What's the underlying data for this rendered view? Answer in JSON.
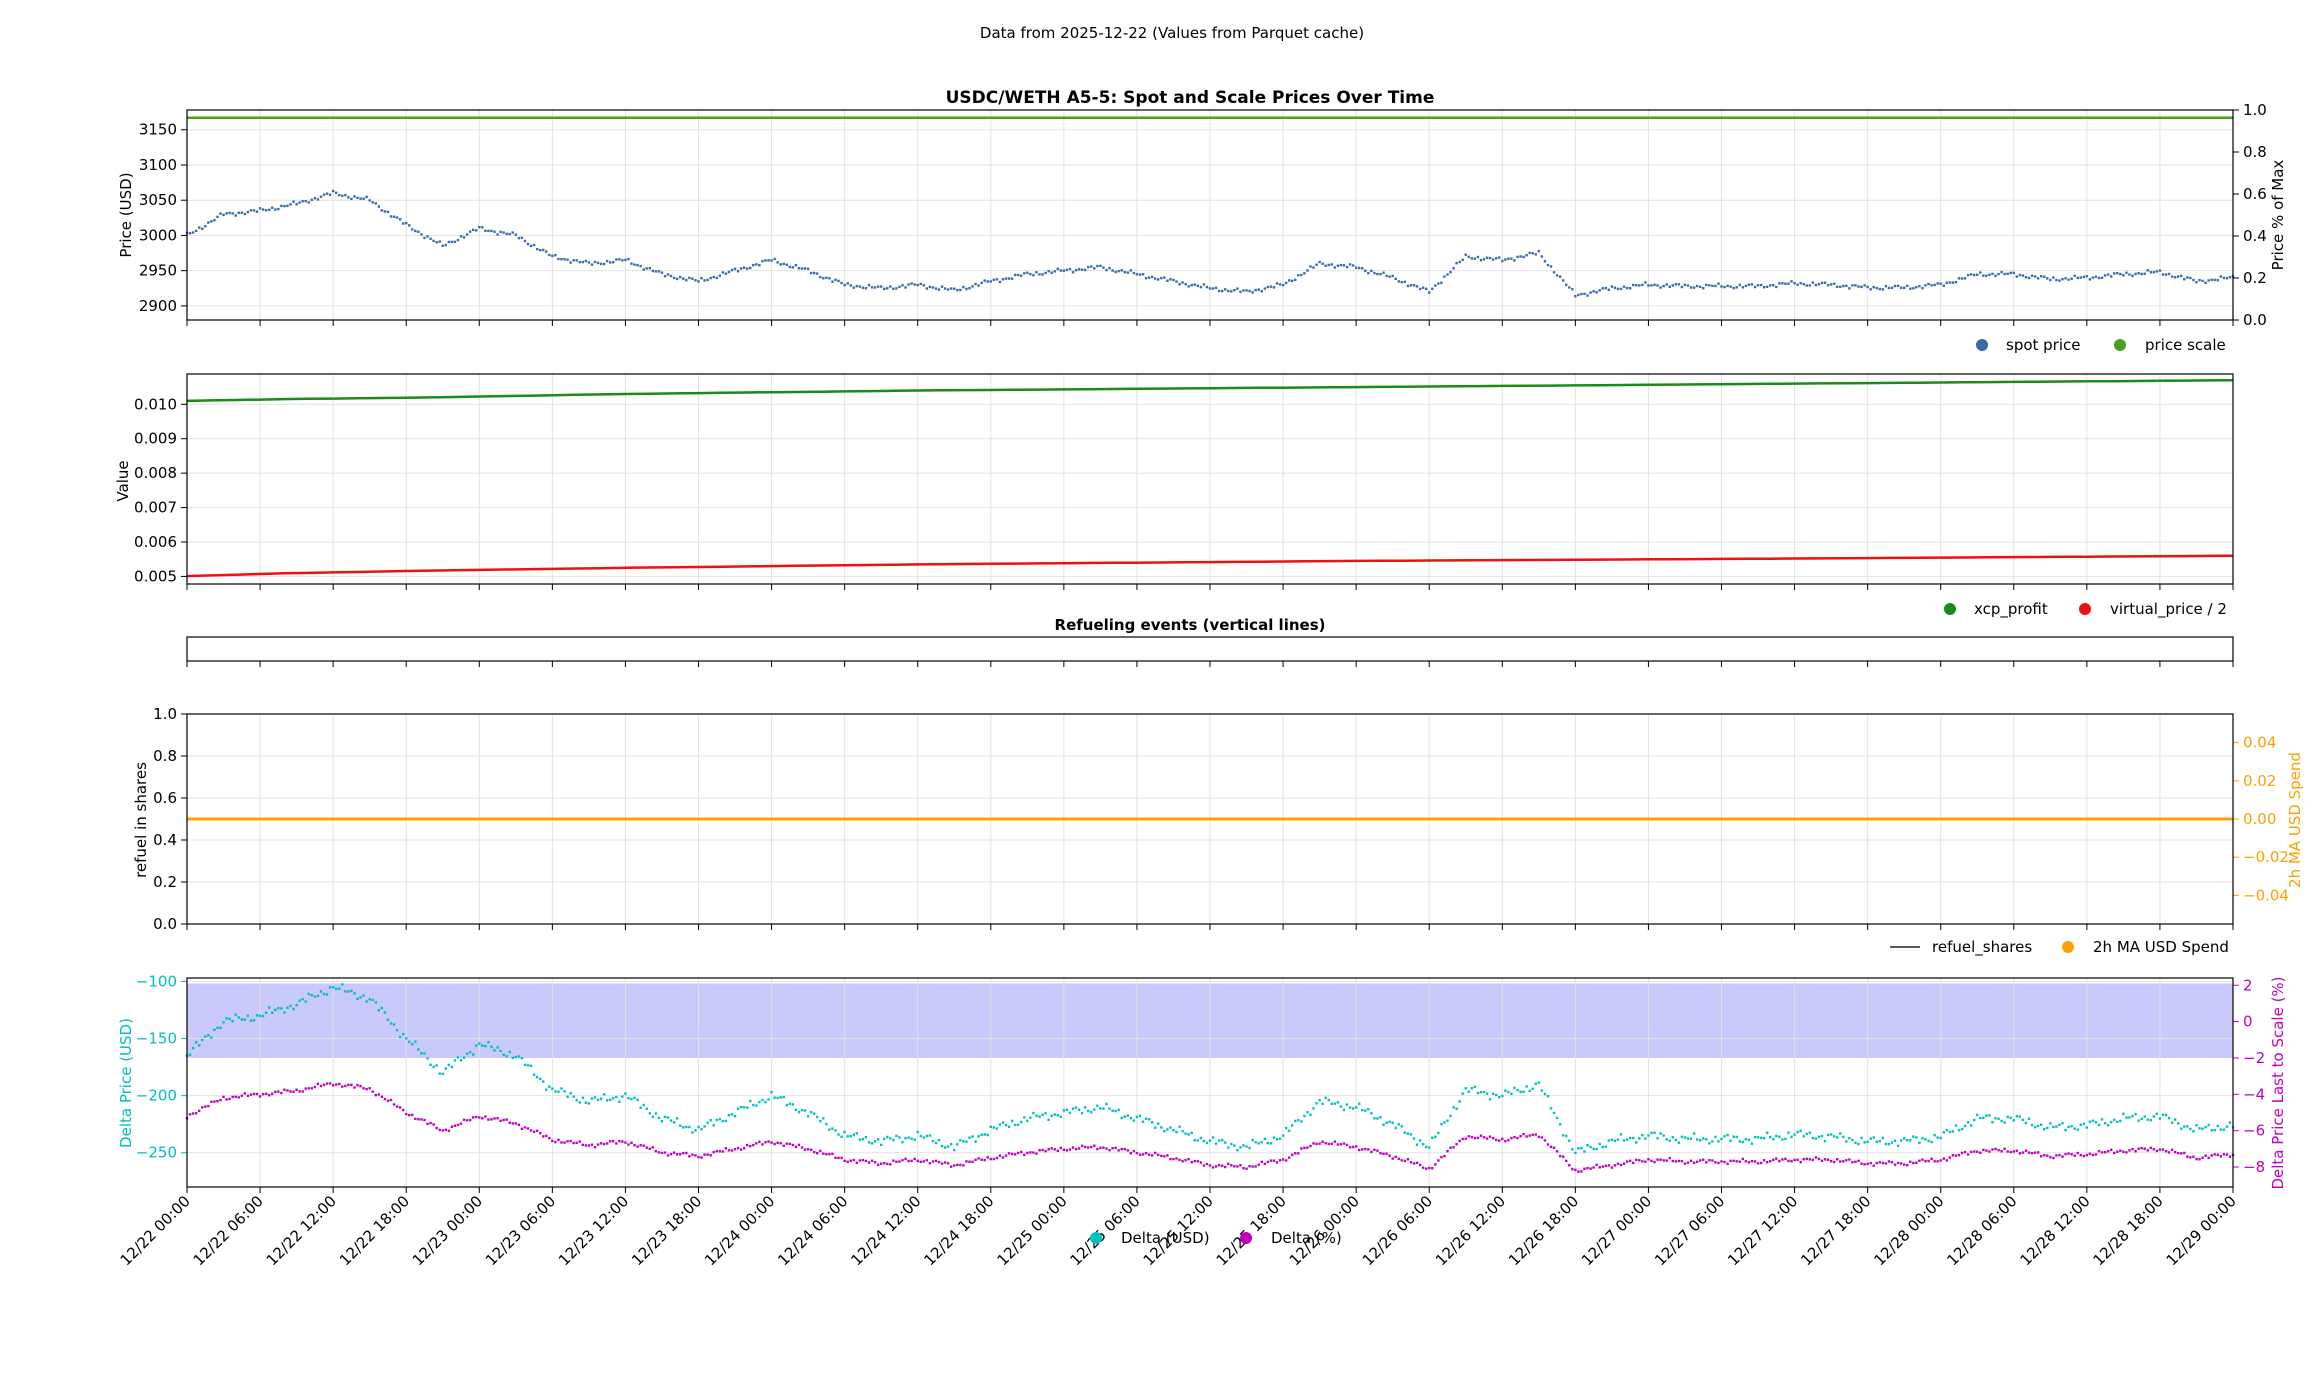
{
  "suptitle": "Data from 2025-12-22 (Values from Parquet cache)",
  "x_ticks": [
    "12/22 00:00",
    "12/22 06:00",
    "12/22 12:00",
    "12/22 18:00",
    "12/23 00:00",
    "12/23 06:00",
    "12/23 12:00",
    "12/23 18:00",
    "12/24 00:00",
    "12/24 06:00",
    "12/24 12:00",
    "12/24 18:00",
    "12/25 00:00",
    "12/25 06:00",
    "12/25 12:00",
    "12/25 18:00",
    "12/26 00:00",
    "12/26 06:00",
    "12/26 12:00",
    "12/26 18:00",
    "12/27 00:00",
    "12/27 06:00",
    "12/27 12:00",
    "12/27 18:00",
    "12/28 00:00",
    "12/28 06:00",
    "12/28 12:00",
    "12/28 18:00",
    "12/29 00:00"
  ],
  "colors": {
    "spot": "#3a6aa8",
    "scale": "#4aa01c",
    "xcp": "#1a8a1a",
    "virtual": "#ee1111",
    "ma_spend": "#ffa000",
    "refuel": "#222222",
    "delta_usd": "#00bfbf",
    "delta_pct": "#bf00bf",
    "band": "#c9c9fb"
  },
  "chart_data": [
    {
      "type": "scatter",
      "title": "USDC/WETH A5-5: Spot and Scale Prices Over Time",
      "ylabel": "Price (USD)",
      "ylabel_right": "Price % of Max",
      "ylim": [
        2880,
        3178
      ],
      "y_ticks": [
        2900,
        2950,
        3000,
        3050,
        3100,
        3150
      ],
      "ylim_right": [
        0,
        1
      ],
      "y_ticks_right": [
        "0.0",
        "0.2",
        "0.4",
        "0.6",
        "0.8",
        "1.0"
      ],
      "grid": true,
      "legend_position": "bottom-right",
      "series": [
        {
          "name": "spot price",
          "x": [
            0,
            3,
            6,
            9,
            12,
            15,
            18,
            21,
            24,
            27,
            30,
            33,
            36,
            39,
            42,
            45,
            48,
            51,
            54,
            57,
            60,
            63,
            66,
            69,
            72,
            75,
            78,
            81,
            84,
            87,
            90,
            93,
            96,
            99,
            102,
            105,
            108,
            111,
            114,
            117,
            120,
            123,
            126,
            129,
            132,
            135,
            138,
            141,
            144,
            147,
            150,
            153,
            156,
            159,
            162,
            165,
            168
          ],
          "values": [
            3000,
            3030,
            3035,
            3045,
            3060,
            3050,
            3015,
            2985,
            3010,
            3000,
            2970,
            2960,
            2965,
            2945,
            2935,
            2950,
            2965,
            2950,
            2930,
            2925,
            2930,
            2922,
            2935,
            2945,
            2950,
            2955,
            2945,
            2935,
            2925,
            2920,
            2930,
            2960,
            2955,
            2940,
            2920,
            2970,
            2965,
            2975,
            2915,
            2925,
            2930,
            2928,
            2928,
            2928,
            2932,
            2930,
            2926,
            2926,
            2930,
            2945,
            2945,
            2938,
            2940,
            2945,
            2948,
            2935,
            2940
          ]
        },
        {
          "name": "price scale",
          "values_constant": 3167
        }
      ]
    },
    {
      "type": "line",
      "ylabel": "Value",
      "ylim": [
        0.00478,
        0.01088
      ],
      "y_ticks": [
        "0.005",
        "0.006",
        "0.007",
        "0.008",
        "0.009",
        "0.010"
      ],
      "grid": true,
      "legend_position": "bottom-right",
      "series": [
        {
          "name": "xcp_profit",
          "x": [
            0,
            8,
            20,
            36,
            60,
            96,
            132,
            168
          ],
          "values": [
            0.0101,
            0.01015,
            0.0102,
            0.0103,
            0.0104,
            0.0105,
            0.0106,
            0.0107
          ]
        },
        {
          "name": "virtual_price / 2",
          "x": [
            0,
            8,
            20,
            36,
            60,
            96,
            132,
            168
          ],
          "values": [
            0.00501,
            0.00509,
            0.00517,
            0.00525,
            0.00535,
            0.00545,
            0.00552,
            0.0056
          ]
        }
      ]
    },
    {
      "type": "line",
      "title": "Refueling events (vertical lines)"
    },
    {
      "type": "line",
      "ylabel": "refuel in shares",
      "ylabel_right": "2h MA USD Spend",
      "ylim": [
        0,
        1
      ],
      "y_ticks": [
        "0.0",
        "0.2",
        "0.4",
        "0.6",
        "0.8",
        "1.0"
      ],
      "ylim_right": [
        -0.055,
        0.055
      ],
      "y_ticks_right": [
        "−0.04",
        "−0.02",
        "0.00",
        "0.02",
        "0.04"
      ],
      "grid": true,
      "legend_position": "bottom-right",
      "series": [
        {
          "name": "refuel_shares",
          "values": []
        },
        {
          "name": "2h MA USD Spend",
          "values_constant": 0.0
        }
      ]
    },
    {
      "type": "scatter",
      "ylabel": "Delta Price (USD)",
      "ylabel_right": "Delta Price Last to Scale (%)",
      "ylim": [
        -280,
        -97
      ],
      "y_ticks": [
        "−100",
        "−150",
        "−200",
        "−250"
      ],
      "ylim_right": [
        -9.1,
        2.4
      ],
      "y_ticks_right": [
        "2",
        "0",
        "−2",
        "−4",
        "−6",
        "−8"
      ],
      "band_pct": [
        -2,
        2.1
      ],
      "grid": true,
      "legend_position": "bottom-center",
      "series": [
        {
          "name": "Delta (USD)",
          "x": [
            0,
            3,
            6,
            9,
            12,
            15,
            18,
            21,
            24,
            27,
            30,
            33,
            36,
            39,
            42,
            45,
            48,
            51,
            54,
            57,
            60,
            63,
            66,
            69,
            72,
            75,
            78,
            81,
            84,
            87,
            90,
            93,
            96,
            99,
            102,
            105,
            108,
            111,
            114,
            117,
            120,
            123,
            126,
            129,
            132,
            135,
            138,
            141,
            144,
            147,
            150,
            153,
            156,
            159,
            162,
            165,
            168
          ],
          "values": [
            -165,
            -135,
            -130,
            -120,
            -105,
            -115,
            -150,
            -180,
            -155,
            -165,
            -195,
            -205,
            -200,
            -220,
            -230,
            -215,
            -200,
            -215,
            -235,
            -240,
            -235,
            -245,
            -230,
            -220,
            -215,
            -210,
            -220,
            -230,
            -240,
            -245,
            -235,
            -205,
            -210,
            -225,
            -245,
            -195,
            -200,
            -190,
            -250,
            -240,
            -235,
            -238,
            -238,
            -238,
            -234,
            -236,
            -240,
            -240,
            -236,
            -220,
            -220,
            -228,
            -226,
            -220,
            -218,
            -230,
            -226
          ]
        },
        {
          "name": "Delta (%)",
          "x": [
            0,
            3,
            6,
            9,
            12,
            15,
            18,
            21,
            24,
            27,
            30,
            33,
            36,
            39,
            42,
            45,
            48,
            51,
            54,
            57,
            60,
            63,
            66,
            69,
            72,
            75,
            78,
            81,
            84,
            87,
            90,
            93,
            96,
            99,
            102,
            105,
            108,
            111,
            114,
            117,
            120,
            123,
            126,
            129,
            132,
            135,
            138,
            141,
            144,
            147,
            150,
            153,
            156,
            159,
            162,
            165,
            168
          ],
          "values": [
            -5.2,
            -4.2,
            -4.0,
            -3.8,
            -3.4,
            -3.7,
            -5.0,
            -6.0,
            -5.2,
            -5.6,
            -6.5,
            -6.8,
            -6.6,
            -7.2,
            -7.4,
            -7.0,
            -6.6,
            -7.0,
            -7.6,
            -7.8,
            -7.6,
            -7.9,
            -7.5,
            -7.2,
            -7.0,
            -6.9,
            -7.2,
            -7.5,
            -7.9,
            -8.0,
            -7.6,
            -6.6,
            -6.9,
            -7.4,
            -8.1,
            -6.3,
            -6.5,
            -6.2,
            -8.2,
            -7.9,
            -7.6,
            -7.7,
            -7.7,
            -7.7,
            -7.6,
            -7.6,
            -7.8,
            -7.8,
            -7.6,
            -7.1,
            -7.1,
            -7.4,
            -7.3,
            -7.1,
            -7.0,
            -7.5,
            -7.3
          ]
        }
      ]
    }
  ]
}
